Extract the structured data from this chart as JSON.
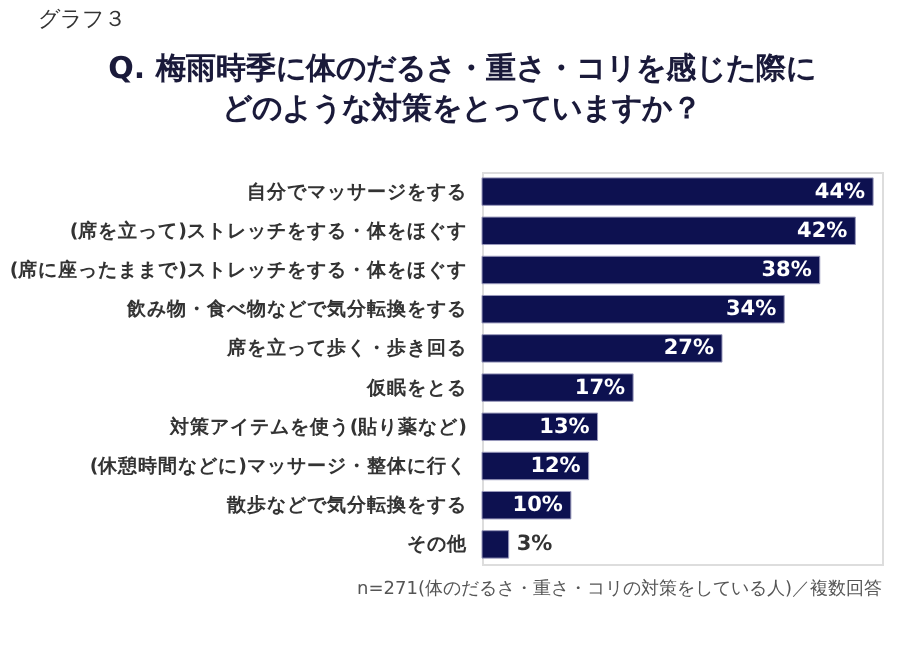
{
  "chart_data": {
    "type": "bar",
    "orientation": "horizontal",
    "title": "Q. 梅雨時季に体のだるさ・重さ・コリを感じた際にどのような対策をとっていますか？",
    "categories": [
      "自分でマッサージをする",
      "(席を立って)ストレッチをする・体をほぐす",
      "(席に座ったままで)ストレッチをする・体をほぐす",
      "飲み物・食べ物などで気分転換をする",
      "席を立って歩く・歩き回る",
      "仮眠をとる",
      "対策アイテムを使う(貼り薬など)",
      "(休憩時間などに)マッサージ・整体に行く",
      "散歩などで気分転換をする",
      "その他"
    ],
    "values": [
      44,
      42,
      38,
      34,
      27,
      17,
      13,
      12,
      10,
      3
    ],
    "value_labels": [
      "44%",
      "42%",
      "38%",
      "34%",
      "27%",
      "17%",
      "13%",
      "12%",
      "10%",
      "3%"
    ],
    "color": "#0d1150",
    "xlim": [
      0,
      45
    ],
    "annotations": [
      "グラフ３",
      "n=271(体のだるさ・重さ・コリの対策をしている人)／複数回答"
    ]
  }
}
